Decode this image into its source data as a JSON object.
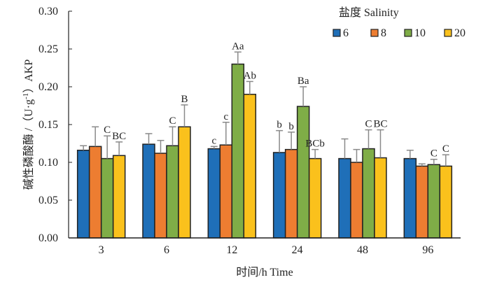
{
  "chart_data": {
    "type": "bar",
    "title": "",
    "xlabel": "时间/h Time",
    "ylabel": "碱性磷酸酶 / (U·g⁻¹) AKP",
    "ylabel_parts": {
      "main": "碱性磷酸酶 /（U·g",
      "sup": "-1",
      "tail": "）AKP"
    },
    "ylim": [
      0,
      0.3
    ],
    "yticks": [
      "0.00",
      "0.05",
      "0.10",
      "0.15",
      "0.20",
      "0.25",
      "0.30"
    ],
    "ytick_values": [
      0,
      0.05,
      0.1,
      0.15,
      0.2,
      0.25,
      0.3
    ],
    "categories": [
      "3",
      "6",
      "12",
      "24",
      "48",
      "96"
    ],
    "legend": {
      "title": "盐度  Salinity",
      "position": "top-right"
    },
    "series": [
      {
        "name": "6",
        "color": "#1F6FB8",
        "values": [
          0.116,
          0.124,
          0.118,
          0.113,
          0.105,
          0.105
        ],
        "error_top": [
          0.122,
          0.138,
          0.121,
          0.142,
          0.131,
          0.116
        ],
        "labels": [
          "",
          "",
          "c",
          "b",
          "",
          ""
        ]
      },
      {
        "name": "8",
        "color": "#ED7D31",
        "values": [
          0.121,
          0.112,
          0.123,
          0.117,
          0.1,
          0.095
        ],
        "error_top": [
          0.147,
          0.129,
          0.153,
          0.14,
          0.117,
          0.098
        ],
        "labels": [
          "",
          "",
          "c",
          "b",
          "",
          ""
        ]
      },
      {
        "name": "10",
        "color": "#7FAD47",
        "values": [
          0.105,
          0.122,
          0.23,
          0.174,
          0.118,
          0.097
        ],
        "error_top": [
          0.135,
          0.147,
          0.246,
          0.2,
          0.143,
          0.104
        ],
        "labels": [
          "C",
          "C",
          "Aa",
          "Ba",
          "C",
          "C"
        ]
      },
      {
        "name": "20",
        "color": "#FAC11C",
        "values": [
          0.109,
          0.147,
          0.19,
          0.105,
          0.106,
          0.095
        ],
        "error_top": [
          0.127,
          0.176,
          0.207,
          0.117,
          0.143,
          0.11
        ],
        "labels": [
          "BC",
          "B",
          "Ab",
          "BCb",
          "BC",
          "C"
        ]
      }
    ]
  }
}
